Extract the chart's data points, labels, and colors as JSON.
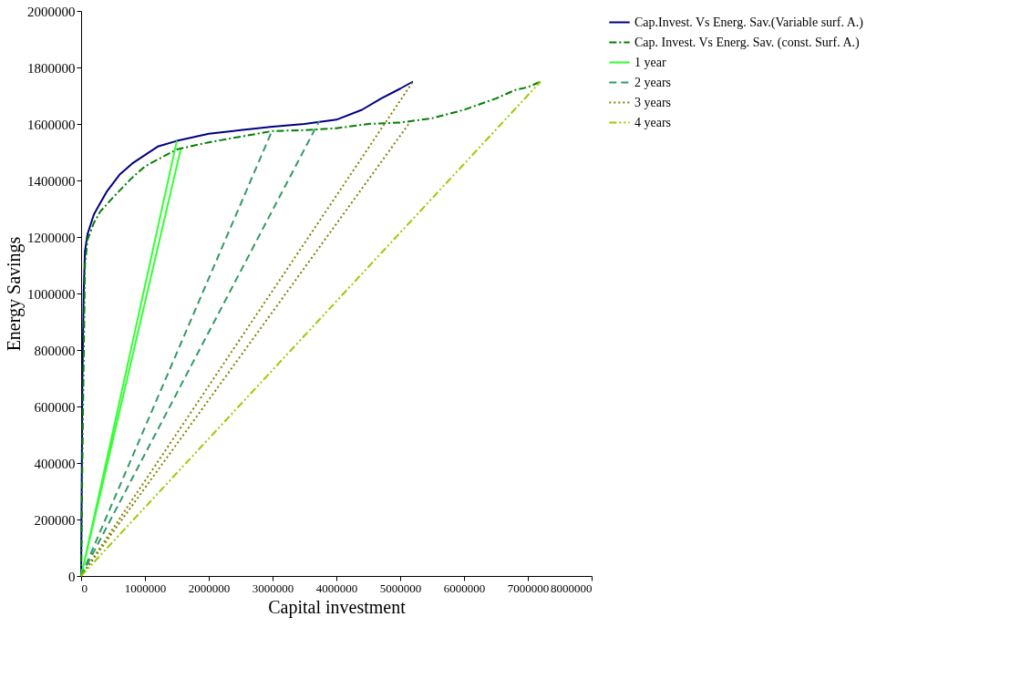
{
  "chart_data": {
    "type": "line",
    "xlabel": "Capital investment",
    "ylabel": "Energy Savings",
    "xlim": [
      0,
      8000000
    ],
    "xticks": [
      0,
      1000000,
      2000000,
      3000000,
      4000000,
      5000000,
      6000000,
      7000000,
      8000000
    ],
    "ylim": [
      0,
      2000000
    ],
    "yticks": [
      0,
      200000,
      400000,
      600000,
      800000,
      1000000,
      1200000,
      1400000,
      1600000,
      1800000,
      2000000
    ],
    "grid": false,
    "legend": "right",
    "marker": "none",
    "series": [
      {
        "name": "Cap.Invest. Vs Energ. Sav.(Variable surf. A.)",
        "color": "#000080",
        "line_style": "solid",
        "x": [
          0,
          20000,
          40000,
          60000,
          100000,
          200000,
          300000,
          400000,
          600000,
          800000,
          1000000,
          1200000,
          1500000,
          2000000,
          2500000,
          3000000,
          3500000,
          4000000,
          4400000,
          4700000,
          5000000,
          5200000
        ],
        "values": [
          0,
          700000,
          1000000,
          1150000,
          1210000,
          1280000,
          1320000,
          1360000,
          1420000,
          1460000,
          1490000,
          1520000,
          1540000,
          1565000,
          1578000,
          1590000,
          1600000,
          1615000,
          1650000,
          1690000,
          1725000,
          1750000
        ]
      },
      {
        "name": "Cap. Invest. Vs Energ. Sav. (const. Surf. A.)",
        "color": "#008000",
        "line_style": "dashdot",
        "x": [
          0,
          30000,
          60000,
          100000,
          200000,
          300000,
          500000,
          800000,
          1000000,
          1500000,
          2000000,
          2500000,
          3000000,
          3500000,
          4000000,
          4500000,
          5000000,
          5500000,
          6000000,
          6500000,
          6800000,
          7000000,
          7200000
        ],
        "values": [
          0,
          600000,
          1100000,
          1190000,
          1250000,
          1290000,
          1340000,
          1410000,
          1450000,
          1510000,
          1535000,
          1555000,
          1575000,
          1578000,
          1585000,
          1600000,
          1605000,
          1620000,
          1650000,
          1690000,
          1720000,
          1730000,
          1750000
        ]
      },
      {
        "name": "1 year",
        "color": "#33ff33",
        "line_style": "solid",
        "x": [
          0,
          1500000,
          null,
          0,
          1560000
        ],
        "values": [
          0,
          1540000,
          null,
          0,
          1510000
        ]
      },
      {
        "name": "2 years",
        "color": "#339966",
        "line_style": "dashed",
        "x": [
          0,
          3000000,
          null,
          0,
          3730000
        ],
        "values": [
          0,
          1580000,
          null,
          0,
          1610000
        ]
      },
      {
        "name": "3 years",
        "color": "#808000",
        "line_style": "dotted",
        "x": [
          0,
          5200000,
          null,
          0,
          5150000
        ],
        "values": [
          0,
          1750000,
          null,
          0,
          1605000
        ]
      },
      {
        "name": "4 years",
        "color": "#99cc00",
        "line_style": "dashdotdot",
        "x": [
          0,
          7200000
        ],
        "values": [
          0,
          1750000
        ]
      }
    ]
  }
}
